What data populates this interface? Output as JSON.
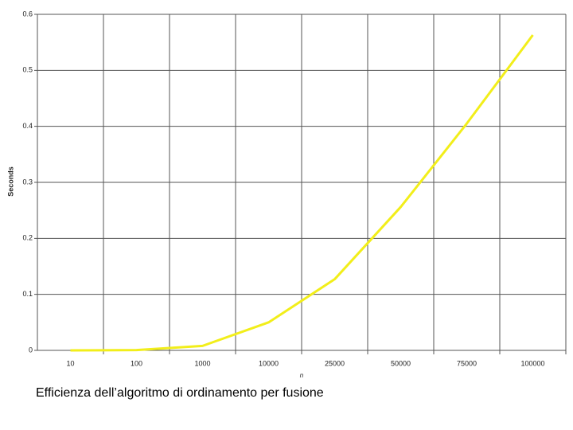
{
  "chart_data": {
    "type": "line",
    "categories": [
      "10",
      "100",
      "1000",
      "10000",
      "25000",
      "50000",
      "75000",
      "100000"
    ],
    "values": [
      0,
      0.0005,
      0.008,
      0.05,
      0.127,
      0.256,
      0.405,
      0.563
    ],
    "color": "#f2ee1a",
    "ylim": [
      0,
      0.6
    ],
    "yticks": [
      0,
      0.1,
      0.2,
      0.3,
      0.4,
      0.5,
      0.6
    ],
    "y_label": "Seconds",
    "x_label": "n",
    "grid": true,
    "caption": "Efficienza dell’algoritmo di ordinamento per fusione"
  }
}
